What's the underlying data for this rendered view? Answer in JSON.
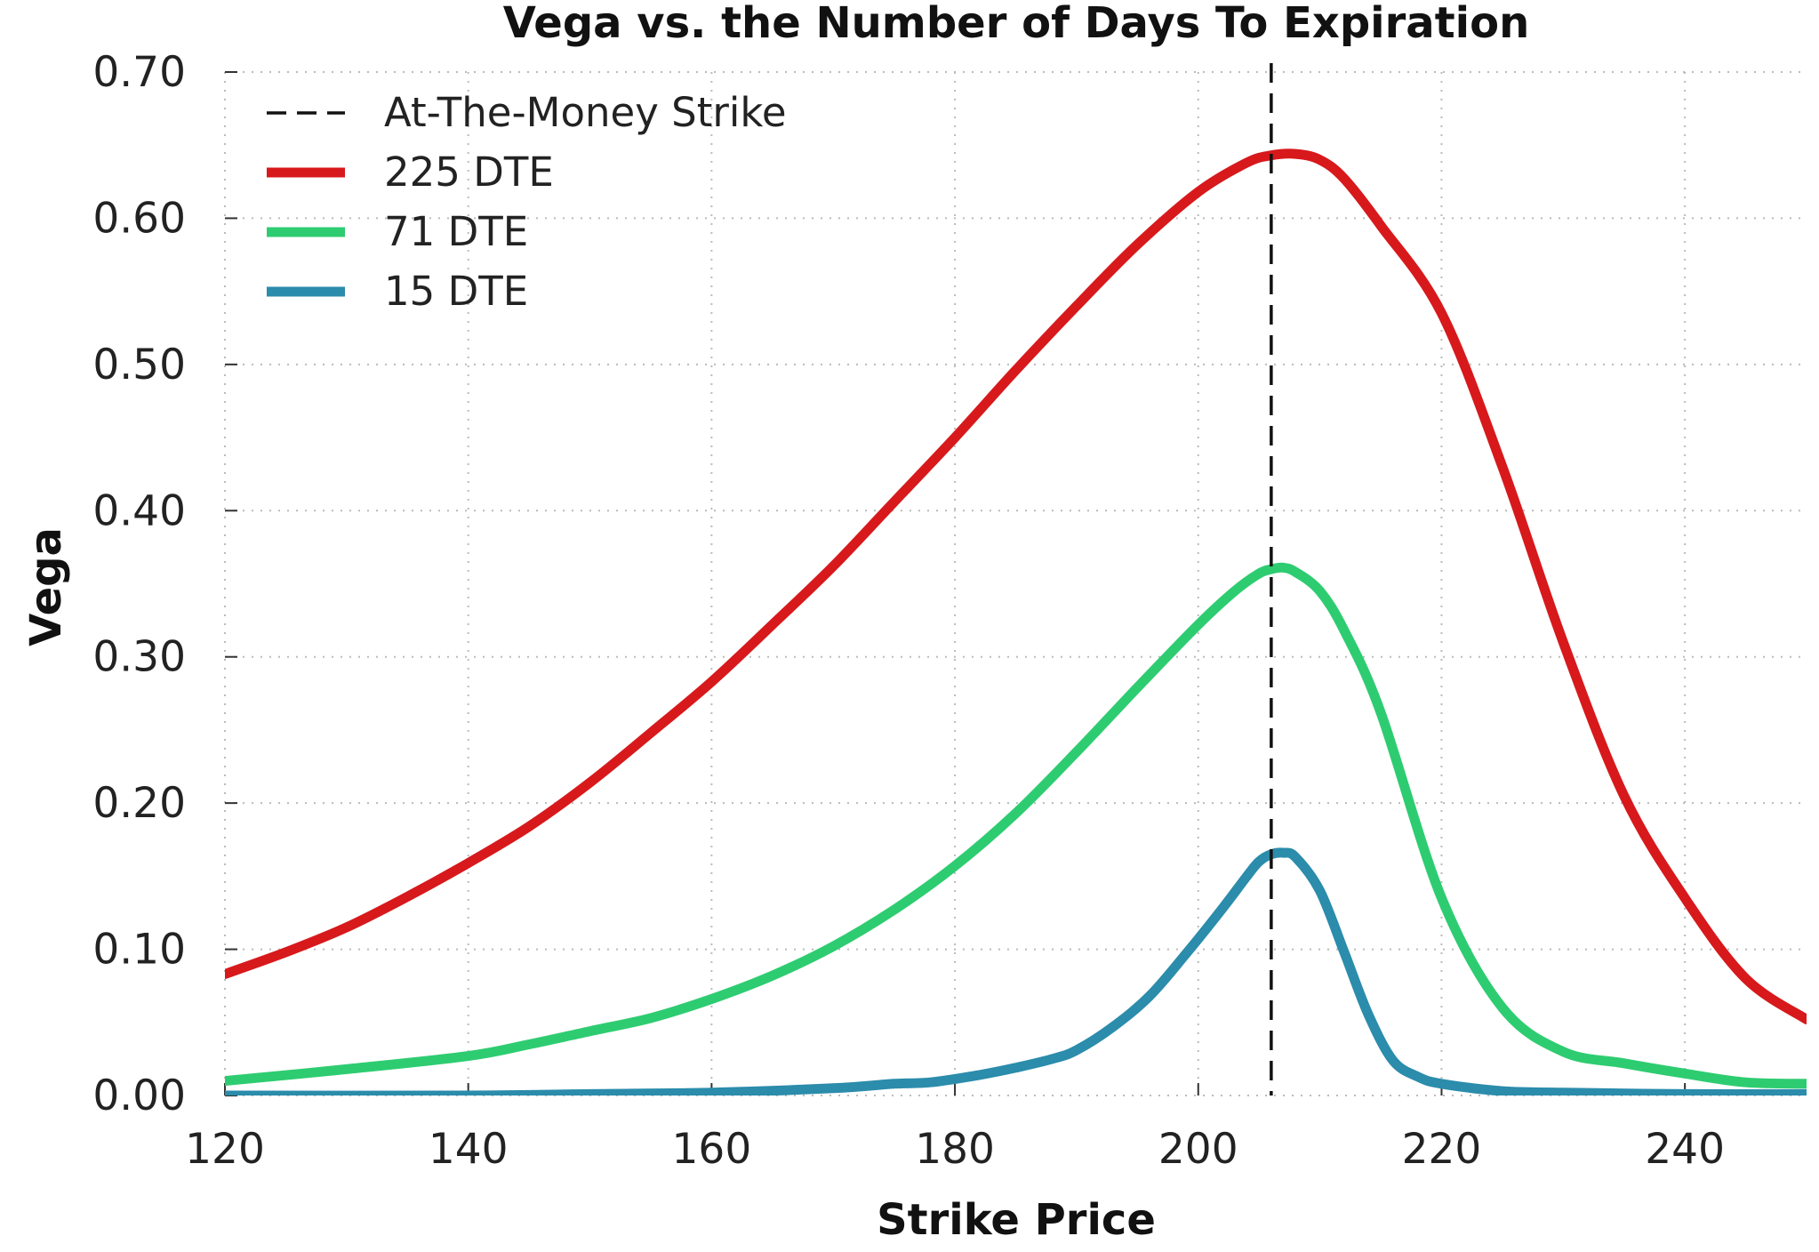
{
  "chart_data": {
    "type": "line",
    "title": "Vega vs. the Number of Days To Expiration",
    "xlabel": "Strike Price",
    "ylabel": "Vega",
    "xlim": [
      120,
      250
    ],
    "ylim": [
      0,
      0.7
    ],
    "xticks": [
      120,
      140,
      160,
      180,
      200,
      220,
      240
    ],
    "xtick_labels": [
      "120",
      "140",
      "160",
      "180",
      "200",
      "220",
      "240"
    ],
    "yticks": [
      0,
      0.1,
      0.2,
      0.3,
      0.4,
      0.5,
      0.6,
      0.7
    ],
    "ytick_labels": [
      "0.00",
      "0.10",
      "0.20",
      "0.30",
      "0.40",
      "0.50",
      "0.60",
      "0.70"
    ],
    "grid": true,
    "legend_position": "top-left",
    "reference_line": {
      "name": "At-The-Money Strike",
      "x": 206,
      "style": "dashed",
      "color": "#111111"
    },
    "series": [
      {
        "name": "225 DTE",
        "color": "#d7191c",
        "x": [
          120,
          125,
          130,
          135,
          140,
          145,
          150,
          155,
          160,
          165,
          170,
          175,
          180,
          185,
          190,
          195,
          200,
          204,
          206,
          208,
          210,
          212,
          215,
          220,
          225,
          230,
          235,
          240,
          245,
          250
        ],
        "y": [
          0.083,
          0.098,
          0.115,
          0.136,
          0.159,
          0.184,
          0.214,
          0.248,
          0.283,
          0.322,
          0.362,
          0.406,
          0.45,
          0.496,
          0.54,
          0.582,
          0.618,
          0.638,
          0.643,
          0.644,
          0.64,
          0.627,
          0.595,
          0.535,
          0.43,
          0.31,
          0.205,
          0.135,
          0.08,
          0.052
        ]
      },
      {
        "name": "71 DTE",
        "color": "#2ecc71",
        "x": [
          120,
          130,
          140,
          145,
          150,
          155,
          160,
          165,
          170,
          175,
          180,
          185,
          190,
          195,
          200,
          203,
          205,
          206,
          207,
          208,
          210,
          212,
          215,
          220,
          225,
          230,
          235,
          240,
          245,
          250
        ],
        "y": [
          0.01,
          0.018,
          0.027,
          0.035,
          0.044,
          0.053,
          0.066,
          0.082,
          0.102,
          0.127,
          0.157,
          0.193,
          0.235,
          0.279,
          0.322,
          0.345,
          0.357,
          0.36,
          0.361,
          0.358,
          0.345,
          0.318,
          0.262,
          0.135,
          0.06,
          0.03,
          0.022,
          0.015,
          0.009,
          0.008
        ]
      },
      {
        "name": "15 DTE",
        "color": "#2b8cab",
        "x": [
          120,
          140,
          150,
          160,
          170,
          175,
          178,
          182,
          185,
          188,
          190,
          193,
          196,
          199,
          202,
          204,
          205,
          206,
          207,
          208,
          210,
          212,
          214,
          216,
          218,
          220,
          225,
          230,
          240,
          250
        ],
        "y": [
          0.0,
          0.0,
          0.001,
          0.002,
          0.005,
          0.008,
          0.009,
          0.014,
          0.019,
          0.025,
          0.031,
          0.047,
          0.068,
          0.097,
          0.128,
          0.15,
          0.16,
          0.165,
          0.166,
          0.163,
          0.14,
          0.098,
          0.055,
          0.024,
          0.013,
          0.008,
          0.003,
          0.002,
          0.001,
          0.001
        ]
      }
    ]
  }
}
